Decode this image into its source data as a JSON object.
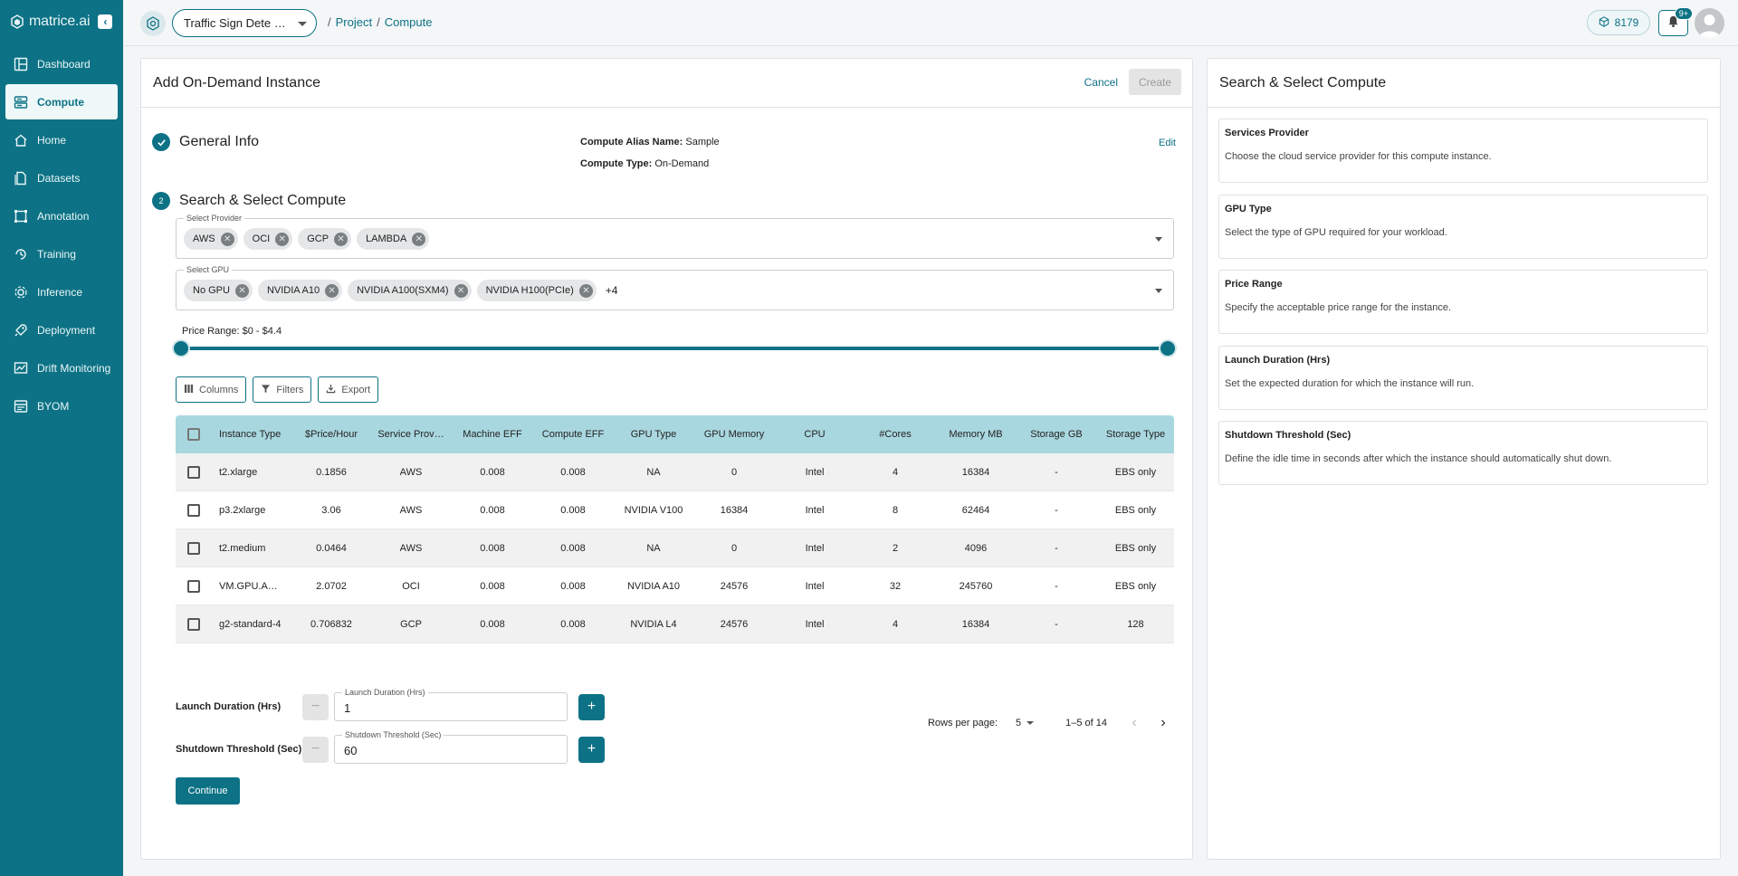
{
  "brand": {
    "name": "matrice.ai"
  },
  "sidebar": {
    "items": [
      {
        "label": "Dashboard",
        "icon": "dashboard-icon"
      },
      {
        "label": "Compute",
        "icon": "compute-icon",
        "active": true
      },
      {
        "label": "Home",
        "icon": "home-icon"
      },
      {
        "label": "Datasets",
        "icon": "datasets-icon"
      },
      {
        "label": "Annotation",
        "icon": "annotation-icon"
      },
      {
        "label": "Training",
        "icon": "training-icon"
      },
      {
        "label": "Inference",
        "icon": "inference-icon"
      },
      {
        "label": "Deployment",
        "icon": "deployment-icon"
      },
      {
        "label": "Drift Monitoring",
        "icon": "drift-icon"
      },
      {
        "label": "BYOM",
        "icon": "byom-icon"
      }
    ]
  },
  "topbar": {
    "project_name": "Traffic Sign Dete …",
    "breadcrumb": [
      "Project",
      "Compute"
    ],
    "credits": "8179",
    "notifications_badge": "9+"
  },
  "main": {
    "title": "Add On-Demand Instance",
    "cancel_label": "Cancel",
    "create_label": "Create",
    "step1": {
      "title": "General Info",
      "alias_label": "Compute Alias Name:",
      "alias_value": "Sample",
      "type_label": "Compute Type:",
      "type_value": "On-Demand",
      "edit_label": "Edit"
    },
    "step2": {
      "number": "2",
      "title": "Search & Select Compute",
      "provider_label": "Select Provider",
      "providers": [
        "AWS",
        "OCI",
        "GCP",
        "LAMBDA"
      ],
      "gpu_label": "Select GPU",
      "gpus": [
        "No GPU",
        "NVIDIA A10",
        "NVIDIA A100(SXM4)",
        "NVIDIA H100(PCIe)"
      ],
      "gpu_more": "+4",
      "price_range_label": "Price Range: $0 - $4.4",
      "price_range": {
        "min": 0,
        "max": 4.4,
        "selected_min": 0,
        "selected_max": 4.4
      }
    },
    "toolbar": {
      "columns": "Columns",
      "filters": "Filters",
      "export": "Export"
    },
    "table": {
      "headers": [
        "Instance Type",
        "$Price/Hour",
        "Service Prov…",
        "Machine EFF",
        "Compute EFF",
        "GPU Type",
        "GPU Memory",
        "CPU",
        "#Cores",
        "Memory MB",
        "Storage GB",
        "Storage Type"
      ],
      "rows": [
        [
          "t2.xlarge",
          "0.1856",
          "AWS",
          "0.008",
          "0.008",
          "NA",
          "0",
          "Intel",
          "4",
          "16384",
          "-",
          "EBS only"
        ],
        [
          "p3.2xlarge",
          "3.06",
          "AWS",
          "0.008",
          "0.008",
          "NVIDIA V100",
          "16384",
          "Intel",
          "8",
          "62464",
          "-",
          "EBS only"
        ],
        [
          "t2.medium",
          "0.0464",
          "AWS",
          "0.008",
          "0.008",
          "NA",
          "0",
          "Intel",
          "2",
          "4096",
          "-",
          "EBS only"
        ],
        [
          "VM.GPU.A…",
          "2.0702",
          "OCI",
          "0.008",
          "0.008",
          "NVIDIA A10",
          "24576",
          "Intel",
          "32",
          "245760",
          "-",
          "EBS only"
        ],
        [
          "g2-standard-4",
          "0.706832",
          "GCP",
          "0.008",
          "0.008",
          "NVIDIA L4",
          "24576",
          "Intel",
          "4",
          "16384",
          "-",
          "128"
        ]
      ]
    },
    "pagination": {
      "rows_per_page_label": "Rows per page:",
      "rows_per_page": "5",
      "range": "1–5 of 14"
    },
    "launch_duration": {
      "label": "Launch Duration (Hrs)",
      "field_label": "Launch Duration (Hrs)",
      "value": "1"
    },
    "shutdown_threshold": {
      "label": "Shutdown Threshold (Sec)",
      "field_label": "Shutdown Threshold (Sec)",
      "value": "60"
    },
    "continue_label": "Continue"
  },
  "side": {
    "title": "Search & Select Compute",
    "items": [
      {
        "title": "Services Provider",
        "desc": "Choose the cloud service provider for this compute instance."
      },
      {
        "title": "GPU Type",
        "desc": "Select the type of GPU required for your workload."
      },
      {
        "title": "Price Range",
        "desc": "Specify the acceptable price range for the instance."
      },
      {
        "title": "Launch Duration (Hrs)",
        "desc": "Set the expected duration for which the instance will run."
      },
      {
        "title": "Shutdown Threshold (Sec)",
        "desc": "Define the idle time in seconds after which the instance should automatically shut down."
      }
    ]
  },
  "colors": {
    "accent": "#0d7285",
    "sidebar_bg": "#0d7285",
    "table_header": "#a9d7df"
  }
}
